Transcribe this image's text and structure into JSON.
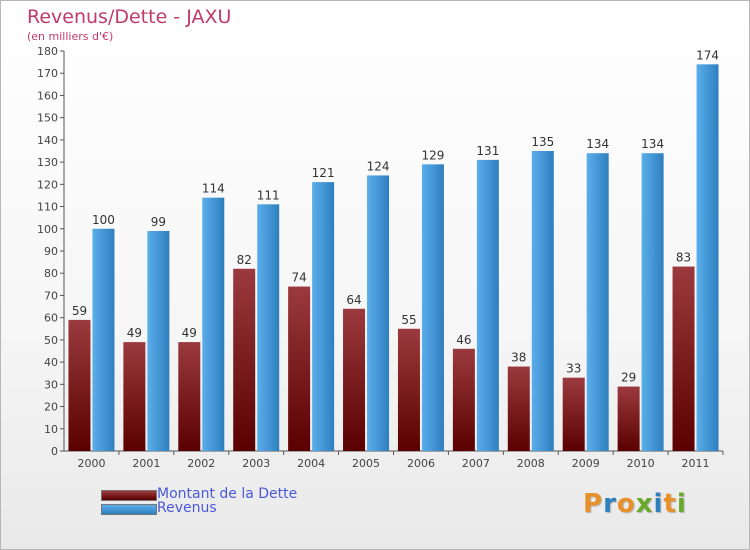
{
  "title": "Revenus/Dette - JAXU",
  "subtitle": "(en milliers d'€)",
  "brand": "Proxiti",
  "colors": {
    "dette_top": "#9b3a3e",
    "dette_bottom": "#5a0000",
    "revenus_light": "#5aaeea",
    "revenus_dark": "#2f7fbf",
    "title": "#c03a6a",
    "legend_text": "#4a59d8",
    "brand_letters": [
      "#e8902a",
      "#2f7fbf",
      "#e8902a",
      "#6aaa2a",
      "#2f7fbf",
      "#e8902a",
      "#6aaa2a"
    ]
  },
  "chart_data": {
    "type": "bar",
    "title": "Revenus/Dette - JAXU",
    "subtitle": "(en milliers d'€)",
    "categories": [
      "2000",
      "2001",
      "2002",
      "2003",
      "2004",
      "2005",
      "2006",
      "2007",
      "2008",
      "2009",
      "2010",
      "2011"
    ],
    "series": [
      {
        "name": "Montant de la Dette",
        "values": [
          59,
          49,
          49,
          82,
          74,
          64,
          55,
          46,
          38,
          33,
          29,
          83
        ]
      },
      {
        "name": "Revenus",
        "values": [
          100,
          99,
          114,
          111,
          121,
          124,
          129,
          131,
          135,
          134,
          134,
          174
        ]
      }
    ],
    "ylim": [
      0,
      180
    ],
    "yticks": [
      0,
      10,
      20,
      30,
      40,
      50,
      60,
      70,
      80,
      90,
      100,
      110,
      120,
      130,
      140,
      150,
      160,
      170,
      180
    ],
    "grid": false,
    "legend": "bottom-left",
    "xlabel": "",
    "ylabel": ""
  }
}
